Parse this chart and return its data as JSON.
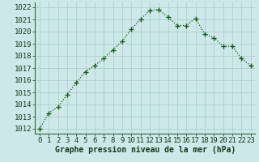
{
  "x": [
    0,
    1,
    2,
    3,
    4,
    5,
    6,
    7,
    8,
    9,
    10,
    11,
    12,
    13,
    14,
    15,
    16,
    17,
    18,
    19,
    20,
    21,
    22,
    23
  ],
  "y": [
    1012.0,
    1013.3,
    1013.8,
    1014.8,
    1015.8,
    1016.7,
    1017.2,
    1017.8,
    1018.5,
    1019.2,
    1020.2,
    1021.0,
    1021.75,
    1021.8,
    1021.2,
    1020.5,
    1020.5,
    1021.1,
    1019.8,
    1019.5,
    1018.8,
    1018.8,
    1017.8,
    1017.2
  ],
  "bg_color": "#cce8e8",
  "grid_color": "#b0d0d0",
  "line_color": "#1a5c1a",
  "marker_color": "#1a5c1a",
  "ylabel_ticks": [
    1012,
    1013,
    1014,
    1015,
    1016,
    1017,
    1018,
    1019,
    1020,
    1021,
    1022
  ],
  "xlabel_label": "Graphe pression niveau de la mer (hPa)",
  "ylim": [
    1011.6,
    1022.4
  ],
  "xlim": [
    -0.5,
    23.5
  ],
  "tick_fontsize": 6.5,
  "label_fontsize": 7.0
}
